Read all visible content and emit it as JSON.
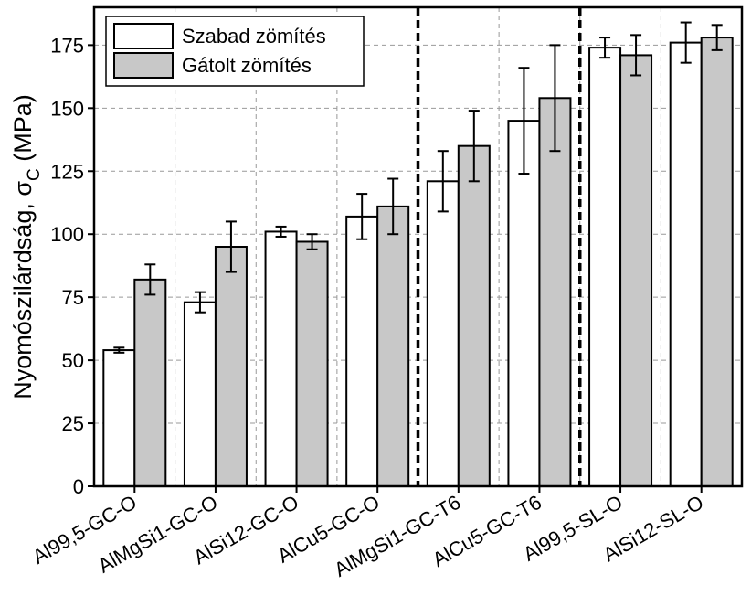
{
  "chart_data": {
    "type": "bar",
    "ylabel": "Nyomószilárdság, σC (MPa)",
    "ylabel_parts": {
      "main": "Nyomószilárdság, σ",
      "subscript": "C",
      "unit": " (MPa)"
    },
    "xlabel": "",
    "ylim": [
      0,
      190
    ],
    "yticks": [
      0,
      25,
      50,
      75,
      100,
      125,
      150,
      175
    ],
    "grid": true,
    "legend_position": "top-left",
    "categories": [
      "Al99,5-GC-O",
      "AlMgSi1-GC-O",
      "AlSi12-GC-O",
      "AlCu5-GC-O",
      "AlMgSi1-GC-T6",
      "AlCu5-GC-T6",
      "Al99,5-SL-O",
      "AlSi12-SL-O"
    ],
    "series": [
      {
        "name": "Szabad zömítés",
        "color": "#ffffff",
        "values": [
          54,
          73,
          101,
          107,
          121,
          145,
          174,
          176
        ],
        "errors": [
          1,
          4,
          2,
          9,
          12,
          21,
          4,
          8
        ]
      },
      {
        "name": "Gátolt zömítés",
        "color": "#c8c8c8",
        "values": [
          82,
          95,
          97,
          111,
          135,
          154,
          171,
          178
        ],
        "errors": [
          6,
          10,
          3,
          11,
          14,
          21,
          8,
          5
        ]
      }
    ],
    "separators_after_category": [
      3,
      5
    ]
  }
}
